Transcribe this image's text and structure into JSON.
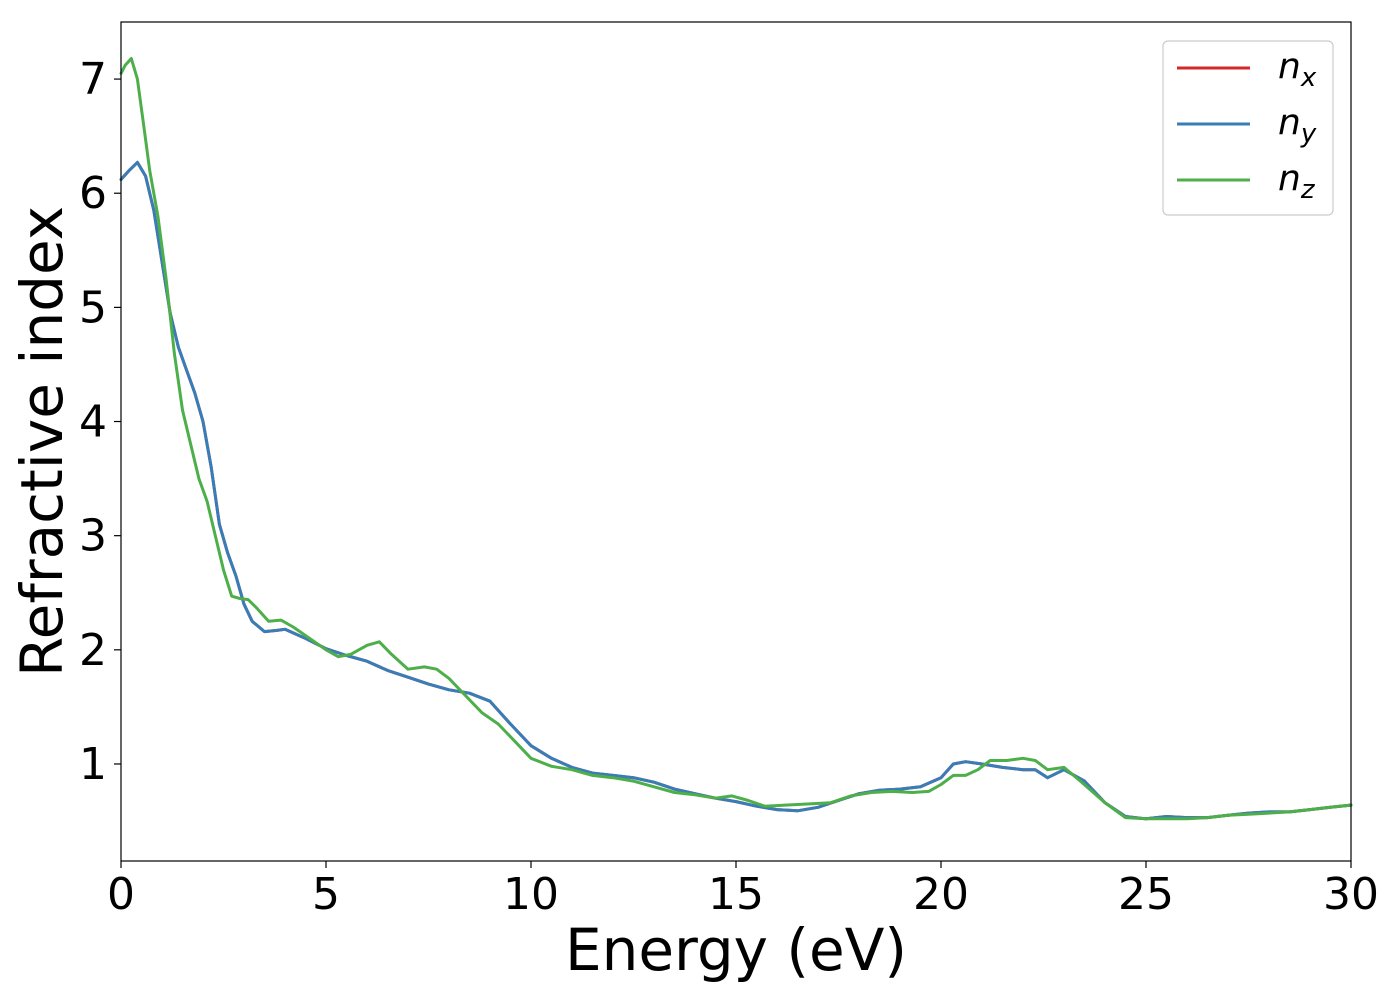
{
  "chart_data": {
    "type": "line",
    "title": "",
    "xlabel": "Energy (eV)",
    "ylabel": "Refractive index",
    "xlim": [
      0,
      30
    ],
    "ylim": [
      0.15,
      7.5
    ],
    "xticks": [
      0,
      5,
      10,
      15,
      20,
      25,
      30
    ],
    "yticks": [
      1,
      2,
      3,
      4,
      5,
      6,
      7
    ],
    "grid": false,
    "legend_position": "top-right",
    "series": [
      {
        "name": "n",
        "subscript": "x",
        "color": "#d62728",
        "x": [
          0,
          0.2,
          0.4,
          0.6,
          0.8,
          1.0,
          1.2,
          1.4,
          1.6,
          1.8,
          2.0,
          2.2,
          2.4,
          2.6,
          2.8,
          3.0,
          3.2,
          3.5,
          3.8,
          4.0,
          4.5,
          5.0,
          5.5,
          6.0,
          6.5,
          7.0,
          7.5,
          8.0,
          8.5,
          9.0,
          9.5,
          10.0,
          10.5,
          11.0,
          11.5,
          12.0,
          12.5,
          13.0,
          13.5,
          14.0,
          14.5,
          15.0,
          15.5,
          16.0,
          16.5,
          17.0,
          17.5,
          18.0,
          18.5,
          19.0,
          19.5,
          20.0,
          20.3,
          20.6,
          21.0,
          21.5,
          22.0,
          22.3,
          22.6,
          23.0,
          23.5,
          24.0,
          24.5,
          25.0,
          25.5,
          26.0,
          26.5,
          27.0,
          27.5,
          28.0,
          28.5,
          29.0,
          29.5,
          30.0
        ],
        "y": [
          6.12,
          6.2,
          6.27,
          6.15,
          5.85,
          5.4,
          4.95,
          4.65,
          4.45,
          4.25,
          4.0,
          3.6,
          3.1,
          2.85,
          2.65,
          2.4,
          2.25,
          2.16,
          2.17,
          2.18,
          2.1,
          2.01,
          1.95,
          1.9,
          1.82,
          1.76,
          1.7,
          1.65,
          1.62,
          1.55,
          1.35,
          1.16,
          1.05,
          0.97,
          0.92,
          0.9,
          0.88,
          0.84,
          0.78,
          0.74,
          0.7,
          0.67,
          0.63,
          0.6,
          0.59,
          0.62,
          0.68,
          0.74,
          0.77,
          0.78,
          0.8,
          0.88,
          1.0,
          1.02,
          1.0,
          0.97,
          0.95,
          0.95,
          0.88,
          0.95,
          0.85,
          0.66,
          0.54,
          0.52,
          0.54,
          0.53,
          0.53,
          0.55,
          0.57,
          0.58,
          0.58,
          0.6,
          0.62,
          0.64
        ]
      },
      {
        "name": "n",
        "subscript": "y",
        "color": "#377eb8",
        "x": [
          0,
          0.2,
          0.4,
          0.6,
          0.8,
          1.0,
          1.2,
          1.4,
          1.6,
          1.8,
          2.0,
          2.2,
          2.4,
          2.6,
          2.8,
          3.0,
          3.2,
          3.5,
          3.8,
          4.0,
          4.5,
          5.0,
          5.5,
          6.0,
          6.5,
          7.0,
          7.5,
          8.0,
          8.5,
          9.0,
          9.5,
          10.0,
          10.5,
          11.0,
          11.5,
          12.0,
          12.5,
          13.0,
          13.5,
          14.0,
          14.5,
          15.0,
          15.5,
          16.0,
          16.5,
          17.0,
          17.5,
          18.0,
          18.5,
          19.0,
          19.5,
          20.0,
          20.3,
          20.6,
          21.0,
          21.5,
          22.0,
          22.3,
          22.6,
          23.0,
          23.5,
          24.0,
          24.5,
          25.0,
          25.5,
          26.0,
          26.5,
          27.0,
          27.5,
          28.0,
          28.5,
          29.0,
          29.5,
          30.0
        ],
        "y": [
          6.12,
          6.2,
          6.27,
          6.15,
          5.85,
          5.4,
          4.95,
          4.65,
          4.45,
          4.25,
          4.0,
          3.6,
          3.1,
          2.85,
          2.65,
          2.4,
          2.25,
          2.16,
          2.17,
          2.18,
          2.1,
          2.01,
          1.95,
          1.9,
          1.82,
          1.76,
          1.7,
          1.65,
          1.62,
          1.55,
          1.35,
          1.16,
          1.05,
          0.97,
          0.92,
          0.9,
          0.88,
          0.84,
          0.78,
          0.74,
          0.7,
          0.67,
          0.63,
          0.6,
          0.59,
          0.62,
          0.68,
          0.74,
          0.77,
          0.78,
          0.8,
          0.88,
          1.0,
          1.02,
          1.0,
          0.97,
          0.95,
          0.95,
          0.88,
          0.95,
          0.85,
          0.66,
          0.54,
          0.52,
          0.54,
          0.53,
          0.53,
          0.55,
          0.57,
          0.58,
          0.58,
          0.6,
          0.62,
          0.64
        ]
      },
      {
        "name": "n",
        "subscript": "z",
        "color": "#4daf4a",
        "x": [
          0,
          0.1,
          0.25,
          0.4,
          0.55,
          0.7,
          0.9,
          1.1,
          1.3,
          1.5,
          1.7,
          1.9,
          2.1,
          2.3,
          2.5,
          2.7,
          2.9,
          3.1,
          3.3,
          3.6,
          3.9,
          4.2,
          4.6,
          5.0,
          5.3,
          5.6,
          6.0,
          6.3,
          6.6,
          7.0,
          7.4,
          7.7,
          8.0,
          8.4,
          8.8,
          9.2,
          9.6,
          10.0,
          10.5,
          11.0,
          11.5,
          12.0,
          12.5,
          13.0,
          13.5,
          14.0,
          14.5,
          14.9,
          15.3,
          15.7,
          16.2,
          16.8,
          17.3,
          17.8,
          18.3,
          18.8,
          19.3,
          19.7,
          20.0,
          20.3,
          20.6,
          20.9,
          21.2,
          21.6,
          22.0,
          22.3,
          22.6,
          23.0,
          23.4,
          24.0,
          24.5,
          25.0,
          25.5,
          26.0,
          26.5,
          27.0,
          27.5,
          28.0,
          28.5,
          29.0,
          29.5,
          30.0
        ],
        "y": [
          7.05,
          7.12,
          7.18,
          7.0,
          6.6,
          6.2,
          5.8,
          5.25,
          4.6,
          4.1,
          3.8,
          3.5,
          3.3,
          3.0,
          2.7,
          2.47,
          2.45,
          2.44,
          2.37,
          2.25,
          2.26,
          2.2,
          2.1,
          2.0,
          1.94,
          1.96,
          2.04,
          2.07,
          1.96,
          1.83,
          1.85,
          1.83,
          1.75,
          1.6,
          1.45,
          1.35,
          1.2,
          1.05,
          0.98,
          0.95,
          0.9,
          0.88,
          0.85,
          0.8,
          0.75,
          0.73,
          0.7,
          0.72,
          0.68,
          0.63,
          0.64,
          0.65,
          0.66,
          0.72,
          0.75,
          0.76,
          0.75,
          0.76,
          0.82,
          0.9,
          0.9,
          0.95,
          1.03,
          1.03,
          1.05,
          1.03,
          0.95,
          0.97,
          0.85,
          0.66,
          0.53,
          0.52,
          0.52,
          0.52,
          0.53,
          0.55,
          0.56,
          0.57,
          0.58,
          0.6,
          0.62,
          0.64
        ]
      }
    ]
  }
}
